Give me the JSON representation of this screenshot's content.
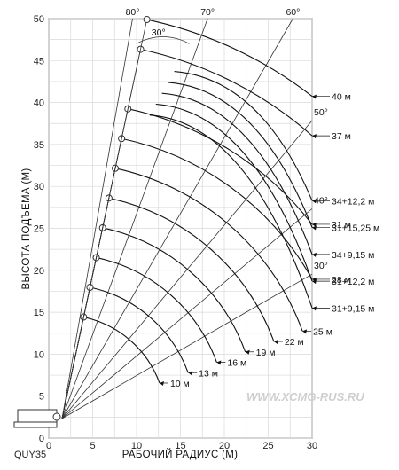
{
  "chart_data": {
    "type": "line",
    "xlabel": "РАБОЧИЙ РАДИУС (М)",
    "ylabel": "ВЫСОТА ПОДЪЕМА (М)",
    "xlim": [
      0,
      30
    ],
    "ylim": [
      0,
      50
    ],
    "x_ticks": [
      "0",
      "5",
      "10",
      "15",
      "20",
      "25",
      "30"
    ],
    "y_ticks": [
      "0",
      "5",
      "10",
      "15",
      "20",
      "25",
      "30",
      "35",
      "40",
      "45",
      "50"
    ],
    "grid": true,
    "model_label": "QUY35",
    "watermark": "WWW.XCMG-RUS.RU",
    "angle_labels": [
      {
        "text": "80°",
        "angle": 80
      },
      {
        "text": "70°",
        "angle": 70
      },
      {
        "text": "60°",
        "angle": 60
      },
      {
        "text": "50°",
        "angle": 50
      },
      {
        "text": "40°",
        "angle": 40
      },
      {
        "text": "30°",
        "angle": 30
      }
    ],
    "jib_offset_label": "30°",
    "series": [
      {
        "name": "10 м",
        "boom_length": 10
      },
      {
        "name": "13 м",
        "boom_length": 13
      },
      {
        "name": "16 м",
        "boom_length": 16
      },
      {
        "name": "19 м",
        "boom_length": 19
      },
      {
        "name": "22 м",
        "boom_length": 22
      },
      {
        "name": "25 м",
        "boom_length": 25
      },
      {
        "name": "28 м",
        "boom_length": 28
      },
      {
        "name": "31 м",
        "boom_length": 31
      },
      {
        "name": "37 м",
        "boom_length": 37
      },
      {
        "name": "40 м",
        "boom_length": 40
      },
      {
        "name": "31+9,15 м",
        "boom_length": 31,
        "jib_length": 9.15
      },
      {
        "name": "31+12,2 м",
        "boom_length": 31,
        "jib_length": 12.2
      },
      {
        "name": "34+9,15 м",
        "boom_length": 34,
        "jib_length": 9.15
      },
      {
        "name": "31+15,25 м",
        "boom_length": 31,
        "jib_length": 15.25
      },
      {
        "name": "34+12,2 м",
        "boom_length": 34,
        "jib_length": 12.2
      }
    ]
  }
}
